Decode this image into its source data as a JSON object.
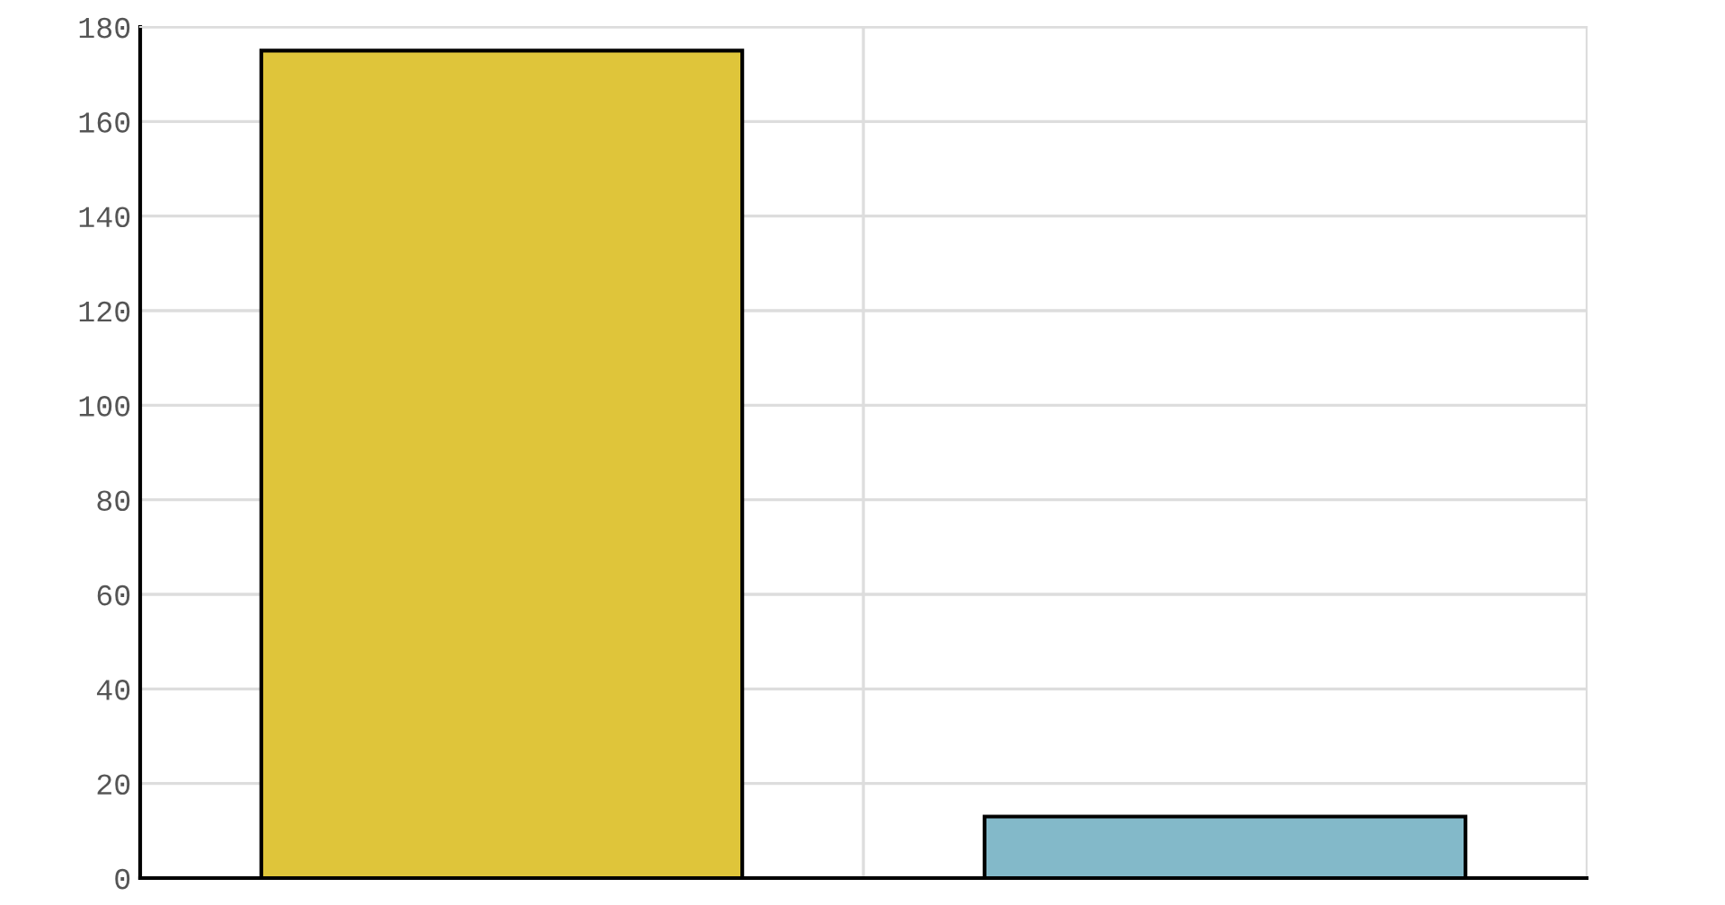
{
  "chart_data": {
    "type": "bar",
    "categories": [
      null,
      null
    ],
    "values": [
      175,
      13
    ],
    "colors": [
      "#dfc53a",
      "#83b9c9"
    ],
    "ylim": [
      0,
      180
    ],
    "yticks": [
      0,
      20,
      40,
      60,
      80,
      100,
      120,
      140,
      160,
      180
    ],
    "grid": true
  }
}
